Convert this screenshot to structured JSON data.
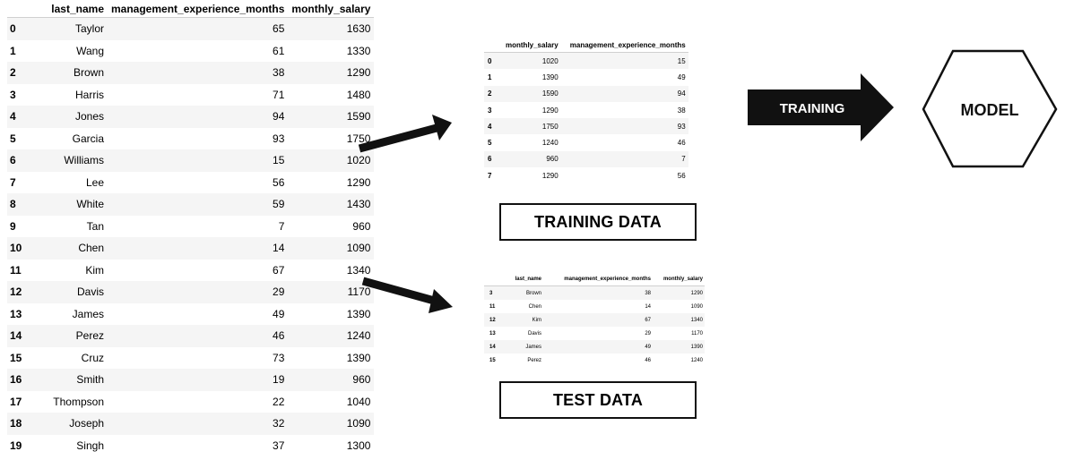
{
  "main_table": {
    "headers": [
      "",
      "last_name",
      "management_experience_months",
      "monthly_salary"
    ],
    "rows": [
      [
        "0",
        "Taylor",
        "65",
        "1630"
      ],
      [
        "1",
        "Wang",
        "61",
        "1330"
      ],
      [
        "2",
        "Brown",
        "38",
        "1290"
      ],
      [
        "3",
        "Harris",
        "71",
        "1480"
      ],
      [
        "4",
        "Jones",
        "94",
        "1590"
      ],
      [
        "5",
        "Garcia",
        "93",
        "1750"
      ],
      [
        "6",
        "Williams",
        "15",
        "1020"
      ],
      [
        "7",
        "Lee",
        "56",
        "1290"
      ],
      [
        "8",
        "White",
        "59",
        "1430"
      ],
      [
        "9",
        "Tan",
        "7",
        "960"
      ],
      [
        "10",
        "Chen",
        "14",
        "1090"
      ],
      [
        "11",
        "Kim",
        "67",
        "1340"
      ],
      [
        "12",
        "Davis",
        "29",
        "1170"
      ],
      [
        "13",
        "James",
        "49",
        "1390"
      ],
      [
        "14",
        "Perez",
        "46",
        "1240"
      ],
      [
        "15",
        "Cruz",
        "73",
        "1390"
      ],
      [
        "16",
        "Smith",
        "19",
        "960"
      ],
      [
        "17",
        "Thompson",
        "22",
        "1040"
      ],
      [
        "18",
        "Joseph",
        "32",
        "1090"
      ],
      [
        "19",
        "Singh",
        "37",
        "1300"
      ]
    ]
  },
  "training_table": {
    "headers": [
      "",
      "monthly_salary",
      "management_experience_months"
    ],
    "rows": [
      [
        "0",
        "1020",
        "15"
      ],
      [
        "1",
        "1390",
        "49"
      ],
      [
        "2",
        "1590",
        "94"
      ],
      [
        "3",
        "1290",
        "38"
      ],
      [
        "4",
        "1750",
        "93"
      ],
      [
        "5",
        "1240",
        "46"
      ],
      [
        "6",
        "960",
        "7"
      ],
      [
        "7",
        "1290",
        "56"
      ]
    ]
  },
  "test_table": {
    "headers": [
      "",
      "last_name",
      "management_experience_months",
      "monthly_salary"
    ],
    "rows": [
      [
        "3",
        "Brown",
        "38",
        "1290"
      ],
      [
        "11",
        "Chen",
        "14",
        "1090"
      ],
      [
        "12",
        "Kim",
        "67",
        "1340"
      ],
      [
        "13",
        "Davis",
        "29",
        "1170"
      ],
      [
        "14",
        "James",
        "49",
        "1390"
      ],
      [
        "15",
        "Perez",
        "46",
        "1240"
      ]
    ]
  },
  "labels": {
    "training_data": "TRAINING DATA",
    "test_data": "TEST DATA",
    "training_arrow": "TRAINING",
    "model": "MODEL"
  },
  "colors": {
    "stripe": "#f5f5f5",
    "arrow": "#111111"
  }
}
